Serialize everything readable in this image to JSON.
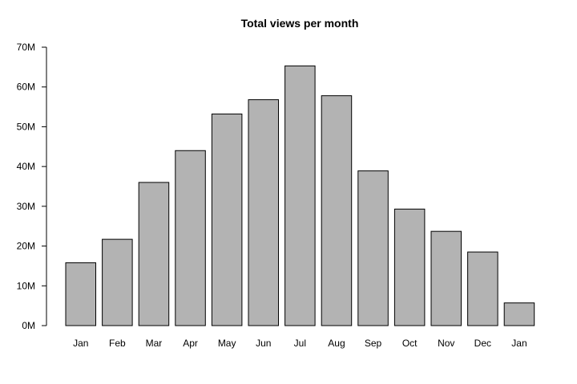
{
  "chart_data": {
    "type": "bar",
    "title": "Total views per month",
    "xlabel": "",
    "ylabel": "",
    "categories": [
      "Jan",
      "Feb",
      "Mar",
      "Apr",
      "May",
      "Jun",
      "Jul",
      "Aug",
      "Sep",
      "Oct",
      "Nov",
      "Dec",
      "Jan"
    ],
    "values": [
      15.8,
      21.7,
      36.0,
      44.0,
      53.2,
      56.8,
      65.3,
      57.8,
      38.9,
      29.3,
      23.7,
      18.5,
      5.7
    ],
    "value_unit_multiplier": 1000000,
    "ylim": [
      0,
      70
    ],
    "yticks": [
      0,
      10,
      20,
      30,
      40,
      50,
      60,
      70
    ],
    "ytick_labels": [
      "0M",
      "10M",
      "20M",
      "30M",
      "40M",
      "50M",
      "60M",
      "70M"
    ],
    "grid": false,
    "bar_color": "#b3b3b3",
    "border_color": "#000000"
  }
}
